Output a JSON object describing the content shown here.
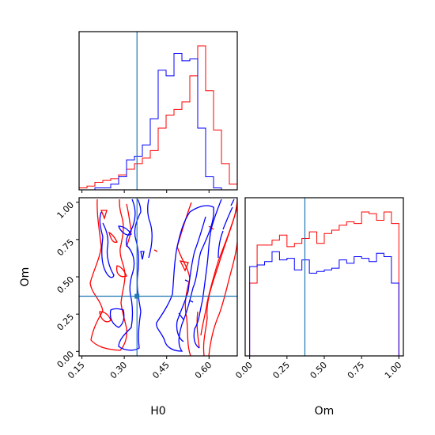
{
  "colors": {
    "red": "#ff0000",
    "blue": "#0000ff",
    "truth": "#1f77b4",
    "axes": "#000000"
  },
  "chart_data": [
    {
      "type": "histogram",
      "panel": "H0 marginal",
      "x": [
        0.14,
        0.168,
        0.196,
        0.224,
        0.252,
        0.28,
        0.308,
        0.336,
        0.364,
        0.392,
        0.42,
        0.448,
        0.476,
        0.504,
        0.532,
        0.56,
        0.588,
        0.616,
        0.644,
        0.672
      ],
      "series": [
        {
          "color": "red",
          "values": [
            1,
            2,
            4,
            5,
            6,
            8,
            11,
            14,
            17,
            21,
            33,
            40,
            43,
            47,
            61,
            77,
            53,
            32,
            14,
            3
          ]
        },
        {
          "color": "blue",
          "values": [
            0,
            0,
            1,
            1,
            3,
            7,
            16,
            18,
            24,
            38,
            64,
            61,
            73,
            69,
            70,
            33,
            7,
            1,
            0,
            0
          ]
        }
      ],
      "xlim": [
        0.14,
        0.7
      ],
      "xticks": [
        0.15,
        0.3,
        0.45,
        0.6
      ],
      "truth_x": 0.345,
      "y_axis": "hidden"
    },
    {
      "type": "contour",
      "panel": "H0 vs Om",
      "xlabel": "H0",
      "ylabel": "Om",
      "xlim": [
        0.14,
        0.7
      ],
      "ylim": [
        -0.03,
        1.03
      ],
      "xticks": [
        "0.15",
        "0.30",
        "0.45",
        "0.60"
      ],
      "yticks": [
        "0.00",
        "0.25",
        "0.50",
        "0.75",
        "1.00"
      ],
      "truth": {
        "x": 0.345,
        "y": 0.37
      },
      "series": [
        {
          "color": "red",
          "description": "two contour levels, low-H0 ridge near 0.14–0.25 and high-H0 ridge near 0.52–0.70"
        },
        {
          "color": "blue",
          "description": "two contour levels, ridge near 0.28–0.36 and ridge near 0.42–0.62"
        }
      ]
    },
    {
      "type": "histogram",
      "panel": "Om marginal",
      "xlabel": "Om",
      "x": [
        0.0,
        0.05,
        0.1,
        0.15,
        0.2,
        0.25,
        0.3,
        0.35,
        0.4,
        0.45,
        0.5,
        0.55,
        0.6,
        0.65,
        0.7,
        0.75,
        0.8,
        0.85,
        0.9,
        0.95
      ],
      "series": [
        {
          "color": "red",
          "values": [
            44,
            67,
            67,
            70,
            73,
            66,
            68,
            71,
            75,
            68,
            74,
            76,
            79,
            81,
            80,
            87,
            86,
            82,
            87,
            80
          ]
        },
        {
          "color": "blue",
          "values": [
            54,
            55,
            57,
            63,
            58,
            59,
            52,
            58,
            50,
            51,
            52,
            53,
            58,
            56,
            60,
            59,
            57,
            62,
            60,
            44
          ]
        }
      ],
      "xlim": [
        -0.03,
        1.03
      ],
      "xticks": [
        "0.00",
        "0.25",
        "0.50",
        "0.75",
        "1.00"
      ],
      "truth_x": 0.37,
      "y_axis": "hidden"
    }
  ]
}
